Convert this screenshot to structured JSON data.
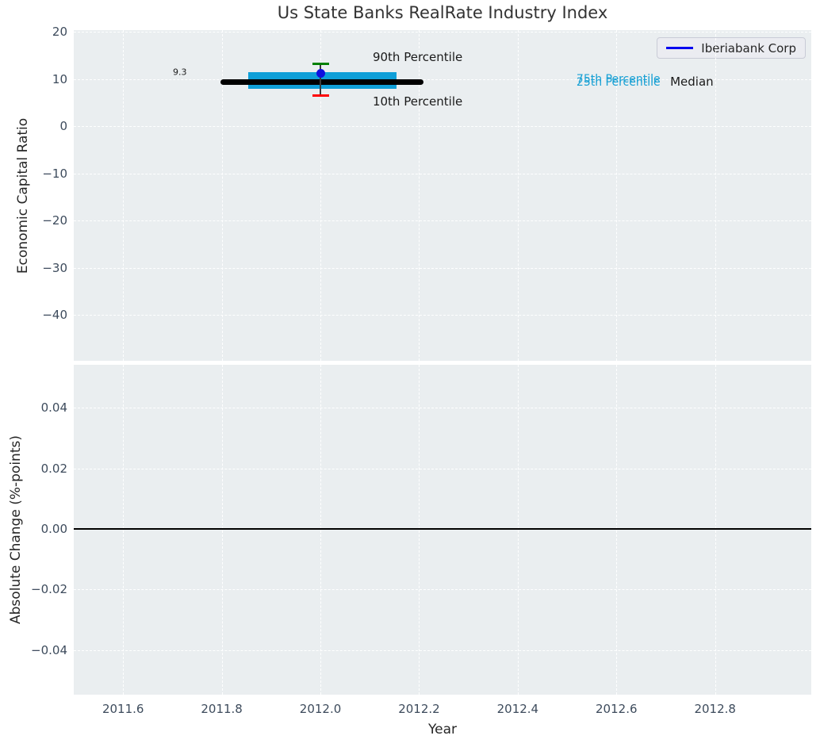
{
  "title": "Us State Banks RealRate Industry Index",
  "legend": {
    "label": "Iberiabank Corp",
    "line_color": "#0000f0"
  },
  "colors": {
    "plot_background": "#eaeef0",
    "grid": "#ffffff",
    "tick_label": "#3d4b5c",
    "iqr_box": "#0f9fd8",
    "median_line": "#000000",
    "p90_cap": "#008000",
    "p10_cap": "#ff0000",
    "company_point": "#0f0fe0",
    "percentile_text": "#18a0d4"
  },
  "chart_data": {
    "type": "box",
    "title": "Us State Banks RealRate Industry Index",
    "xlabel": "Year",
    "legend_entries": [
      "Iberiabank Corp"
    ],
    "legend_position": "upper right",
    "grid": "white dashed on light gray",
    "summary": {
      "year": 2012.0,
      "p90": 13.2,
      "p75": 11.4,
      "median": 9.3,
      "p25": 7.9,
      "p10": 6.4,
      "iberiabank_corp": 11.15,
      "median_label_value": "9.3",
      "bottom_absolute_change": 0.0
    },
    "axes": {
      "top": {
        "ylabel": "Economic Capital Ratio",
        "xlim": [
          2011.5,
          2012.995
        ],
        "ylim": [
          -49.75,
          20.35
        ],
        "yticks": [
          {
            "v": 20,
            "label": "20"
          },
          {
            "v": 10,
            "label": "10"
          },
          {
            "v": 0,
            "label": "0"
          },
          {
            "v": -10,
            "label": "−10"
          },
          {
            "v": -20,
            "label": "−20"
          },
          {
            "v": -30,
            "label": "−30"
          },
          {
            "v": -40,
            "label": "−40"
          }
        ],
        "xticks": [
          {
            "v": 2011.6,
            "label": "2011.6"
          },
          {
            "v": 2011.8,
            "label": "2011.8"
          },
          {
            "v": 2012.0,
            "label": "2012.0"
          },
          {
            "v": 2012.2,
            "label": "2012.2"
          },
          {
            "v": 2012.4,
            "label": "2012.4"
          },
          {
            "v": 2012.6,
            "label": "2012.6"
          },
          {
            "v": 2012.8,
            "label": "2012.8"
          }
        ],
        "marks": [
          {
            "kind": "box",
            "name": "iqr-box",
            "x0": 2011.853,
            "x1": 2012.154,
            "y0": 7.9,
            "y1": 11.4,
            "color": "#0f9fd8"
          },
          {
            "kind": "hseg",
            "name": "median-line",
            "y": 9.3,
            "x0": 2011.797,
            "x1": 2012.209,
            "px": 7,
            "color": "#000000",
            "round": true
          },
          {
            "kind": "vseg",
            "name": "whisker-line",
            "x": 2012.0,
            "y0": 6.4,
            "y1": 13.2,
            "px": 1.6,
            "color": "#3c3c3c"
          },
          {
            "kind": "cap",
            "name": "p90-cap",
            "x": 2012.0,
            "y": 13.2,
            "w": 21,
            "h": 3,
            "color": "#008000"
          },
          {
            "kind": "cap",
            "name": "p10-cap",
            "x": 2012.0,
            "y": 6.4,
            "w": 21,
            "h": 3,
            "color": "#ff0000"
          },
          {
            "kind": "point",
            "name": "iberiabank-point",
            "x": 2012.0,
            "y": 11.15,
            "d": 11,
            "color": "#0f0fe0"
          }
        ],
        "annotations": [
          {
            "name": "median-value-label",
            "text": "9.3",
            "x": 2011.715,
            "y": 11.4,
            "anchor": "center",
            "size": 11,
            "color": "#1a1a1a"
          },
          {
            "name": "p90-label",
            "text": "90th Percentile",
            "x": 2012.106,
            "y": 14.6,
            "anchor": "left",
            "size": 15,
            "color": "#1a1a1a"
          },
          {
            "name": "p10-label",
            "text": "10th Percentile",
            "x": 2012.106,
            "y": 5.2,
            "anchor": "left",
            "size": 15,
            "color": "#1a1a1a"
          },
          {
            "name": "p75-label",
            "text": "75th Percentile",
            "x": 2012.604,
            "y": 9.9,
            "anchor": "center",
            "size": 14,
            "color": "#18a0d4"
          },
          {
            "name": "p25-label",
            "text": "25th Percentile",
            "x": 2012.604,
            "y": 9.25,
            "anchor": "center",
            "size": 14,
            "color": "#18a0d4"
          },
          {
            "name": "median-label",
            "text": "Median",
            "x": 2012.709,
            "y": 9.4,
            "anchor": "left",
            "size": 15,
            "color": "#1a1a1a"
          }
        ]
      },
      "bottom": {
        "ylabel": "Absolute Change (%-points)",
        "xlim": [
          2011.5,
          2012.995
        ],
        "ylim": [
          -0.0548,
          0.0542
        ],
        "yticks": [
          {
            "v": 0.04,
            "label": "0.04"
          },
          {
            "v": 0.02,
            "label": "0.02"
          },
          {
            "v": 0.0,
            "label": "0.00"
          },
          {
            "v": -0.02,
            "label": "−0.02"
          },
          {
            "v": -0.04,
            "label": "−0.04"
          }
        ],
        "xticks": [
          {
            "v": 2011.6,
            "label": "2011.6"
          },
          {
            "v": 2011.8,
            "label": "2011.8"
          },
          {
            "v": 2012.0,
            "label": "2012.0"
          },
          {
            "v": 2012.2,
            "label": "2012.2"
          },
          {
            "v": 2012.4,
            "label": "2012.4"
          },
          {
            "v": 2012.6,
            "label": "2012.6"
          },
          {
            "v": 2012.8,
            "label": "2012.8"
          }
        ],
        "marks": [
          {
            "kind": "hline",
            "name": "zero-line",
            "y": 0.0,
            "px": 2,
            "color": "#000000"
          }
        ],
        "annotations": []
      }
    }
  }
}
